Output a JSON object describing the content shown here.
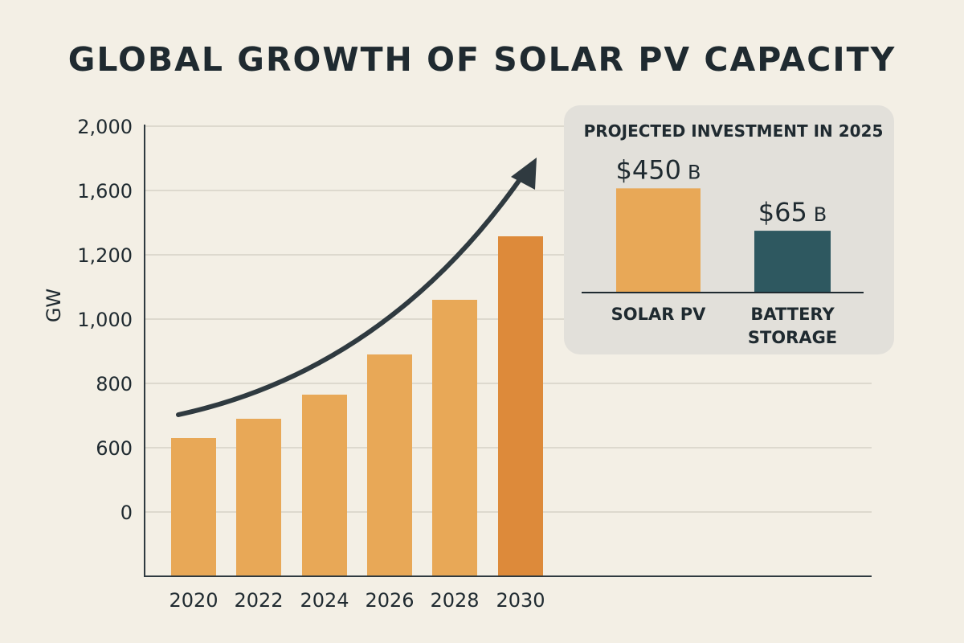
{
  "chart_data": {
    "type": "bar",
    "title": "GLOBAL GROWTH OF SOLAR PV CAPACITY",
    "ylabel": "GW",
    "xlabel": "",
    "y_tick_labels": [
      "0",
      "600",
      "800",
      "1,000",
      "1,200",
      "1,600",
      "2,000"
    ],
    "y_tick_values": [
      0,
      600,
      800,
      1000,
      1200,
      1600,
      2000
    ],
    "categories": [
      "2020",
      "2022",
      "2024",
      "2026",
      "2028",
      "2030"
    ],
    "values": [
      630,
      690,
      765,
      890,
      1060,
      1315
    ],
    "bar_colors": [
      "#e8a857",
      "#e8a857",
      "#e8a857",
      "#e8a857",
      "#e8a857",
      "#dd8a3a"
    ],
    "grid": true,
    "trend_arrow": true,
    "inset": {
      "type": "bar",
      "title": "PROJECTED INVESTMENT IN 2025",
      "categories": [
        "SOLAR PV",
        "BATTERY STORAGE"
      ],
      "category_lines": [
        [
          "SOLAR PV"
        ],
        [
          "BATTERY",
          "STORAGE"
        ]
      ],
      "values": [
        450,
        65
      ],
      "value_labels": [
        "$450",
        "$65"
      ],
      "unit": "B",
      "colors": [
        "#e8a857",
        "#2e5860"
      ]
    }
  }
}
